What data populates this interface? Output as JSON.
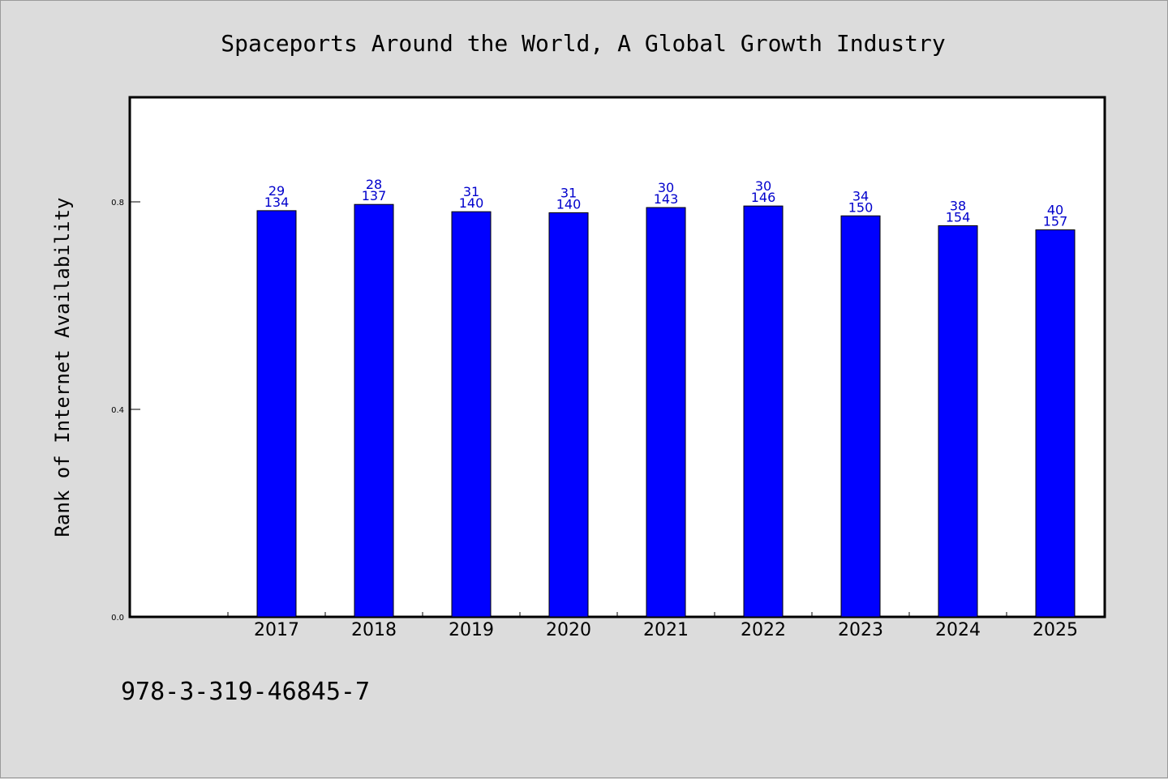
{
  "chart_data": {
    "type": "bar",
    "title": "Spaceports Around the World, A Global Growth Industry",
    "xlabel": "",
    "ylabel": "Rank of Internet Availability",
    "ylim": [
      0,
      1.0
    ],
    "yticks": [
      0.0,
      0.4,
      0.8
    ],
    "ytick_labels": [
      "0.0",
      "0.4",
      "0.8"
    ],
    "categories": [
      "2017",
      "2018",
      "2019",
      "2020",
      "2021",
      "2022",
      "2023",
      "2024",
      "2025"
    ],
    "values": [
      0.783,
      0.795,
      0.781,
      0.779,
      0.789,
      0.792,
      0.773,
      0.754,
      0.746
    ],
    "labels_top": [
      "29",
      "28",
      "31",
      "31",
      "30",
      "30",
      "34",
      "38",
      "40"
    ],
    "labels_bottom": [
      "134",
      "137",
      "140",
      "140",
      "143",
      "146",
      "150",
      "154",
      "157"
    ],
    "bar_color": "#0000ff",
    "label_color": "#0000cc",
    "grid": false,
    "legend": "none"
  },
  "footer": {
    "isbn": "978-3-319-46845-7"
  },
  "colors": {
    "background": "#dcdcdc",
    "plot_background": "#ffffff",
    "bar": "#0000ff"
  }
}
